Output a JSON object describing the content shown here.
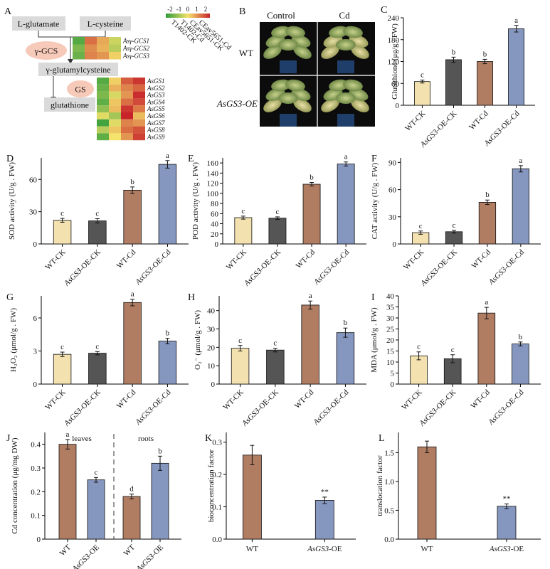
{
  "colors": {
    "wt": "#f3e2b0",
    "oe": "#555555",
    "wtcd": "#b07d63",
    "oecd": "#8596bf",
    "axis": "#000000",
    "hm_low": "#2e9c3a",
    "hm_mid": "#f4e26a",
    "hm_high": "#c8232b"
  },
  "panel_a": {
    "label": "A",
    "l_glutamate": "L-glutamate",
    "l_cysteine": "L-cysteine",
    "gcs": "γ-GCS",
    "gamma_glu_cys": "γ-glutamylcysteine",
    "gs": "GS",
    "glutathione": "glutathione",
    "scale_ticks": [
      "-2",
      "-1",
      "0",
      "1",
      "2"
    ],
    "columns": [
      "T1402-CK",
      "T1402-Cd",
      "CEav5651-CK",
      "CEav5651-Cd"
    ],
    "gcs_genes": [
      "Asγ-GCS1",
      "Asγ-GCS2",
      "Asγ-GCS3"
    ],
    "gs_genes": [
      "AsGS1",
      "AsGS2",
      "AsGS3",
      "AsGS4",
      "AsGS5",
      "AsGS6",
      "AsGS7",
      "AsGS8",
      "AsGS9"
    ],
    "gcs_values": [
      [
        -1.6,
        1.2,
        0.6,
        -0.4
      ],
      [
        -1.2,
        0.9,
        0.5,
        -0.6
      ],
      [
        -1.4,
        1.0,
        0.8,
        0.2
      ]
    ],
    "gs_values": [
      [
        -1.6,
        0.2,
        1.4,
        1.8
      ],
      [
        -1.4,
        0.5,
        1.0,
        1.3
      ],
      [
        -1.2,
        -0.3,
        0.8,
        1.9
      ],
      [
        -1.5,
        0.3,
        1.2,
        1.6
      ],
      [
        -1.0,
        0.4,
        1.8,
        1.1
      ],
      [
        -0.2,
        -0.8,
        2.0,
        0.4
      ],
      [
        -1.8,
        -0.2,
        1.0,
        0.8
      ],
      [
        -0.6,
        0.3,
        1.2,
        1.5
      ],
      [
        -1.5,
        0.0,
        0.8,
        1.7
      ]
    ]
  },
  "panel_b": {
    "label": "B",
    "col_control": "Control",
    "col_cd": "Cd",
    "row_wt": "WT",
    "row_oe": "AsGS3-OE"
  },
  "chart_data": [
    {
      "id": "C",
      "type": "bar",
      "ylabel": "Glutathione (μg/g . FW)",
      "ylim": [
        0,
        240
      ],
      "yticks": [
        0,
        60,
        120,
        180,
        240
      ],
      "categories": [
        "WT-CK",
        "AsGS3-OE-CK",
        "WT-Cd",
        "AsGS3-OE-Cd"
      ],
      "values": [
        65,
        125,
        120,
        210
      ],
      "errors": [
        4,
        7,
        6,
        9
      ],
      "letters": [
        "c",
        "b",
        "b",
        "a"
      ]
    },
    {
      "id": "D",
      "type": "bar",
      "ylabel": "SOD activity (U/g . FW)",
      "ylim": [
        0,
        80
      ],
      "yticks": [
        0,
        30,
        60
      ],
      "categories": [
        "WT-CK",
        "AsGS3-OE-CK",
        "WT-Cd",
        "AsGS3-OE-Cd"
      ],
      "values": [
        22,
        21.5,
        50,
        74
      ],
      "errors": [
        1.8,
        2,
        3,
        3.5
      ],
      "letters": [
        "c",
        "c",
        "b",
        "a"
      ]
    },
    {
      "id": "E",
      "type": "bar",
      "ylabel": "POD activity (U/g . FW)",
      "ylim": [
        0,
        170
      ],
      "yticks": [
        0,
        20,
        40,
        60,
        80,
        100,
        120,
        140,
        160
      ],
      "categories": [
        "WT-CK",
        "AsGS3-OE-CK",
        "WT-Cd",
        "AsGS3-OE-Cd"
      ],
      "values": [
        52,
        51,
        118,
        158
      ],
      "errors": [
        3,
        2.5,
        3.5,
        4
      ],
      "letters": [
        "c",
        "c",
        "b",
        "a"
      ]
    },
    {
      "id": "F",
      "type": "bar",
      "ylabel": "CAT activity (U/g . FW)",
      "ylim": [
        0,
        95
      ],
      "yticks": [
        0,
        30,
        60,
        90
      ],
      "categories": [
        "WT-CK",
        "AsGS3-OE-CK",
        "WT-Cd",
        "AsGS3-OE-Cd"
      ],
      "values": [
        12.5,
        13.5,
        46,
        83
      ],
      "errors": [
        1.8,
        1.5,
        2.5,
        3.5
      ],
      "letters": [
        "c",
        "c",
        "b",
        "a"
      ]
    },
    {
      "id": "G",
      "type": "bar",
      "ylabel": "H₂O₂ (μmol/g . FW)",
      "ylim": [
        0,
        8
      ],
      "yticks": [
        0,
        3,
        6
      ],
      "categories": [
        "WT-CK",
        "AsGS3-OE-CK",
        "WT-Cd",
        "AsGS3-OE-Cd"
      ],
      "values": [
        2.7,
        2.8,
        7.4,
        3.9
      ],
      "errors": [
        0.2,
        0.15,
        0.3,
        0.25
      ],
      "letters": [
        "c",
        "c",
        "a",
        "b"
      ]
    },
    {
      "id": "H",
      "type": "bar",
      "ylabel": "O₂⁻ (μmol/g . FW)",
      "ylim": [
        0,
        48
      ],
      "yticks": [
        0,
        10,
        20,
        30,
        40
      ],
      "categories": [
        "WT-CK",
        "AsGS3-OE-CK",
        "WT-Cd",
        "AsGS3-OE-Cd"
      ],
      "values": [
        19.5,
        18.5,
        43,
        28
      ],
      "errors": [
        1.5,
        1,
        2.2,
        2.5
      ],
      "letters": [
        "c",
        "c",
        "a",
        "b"
      ]
    },
    {
      "id": "I",
      "type": "bar",
      "ylabel": "MDA (μmol/g . FW)",
      "ylim": [
        0,
        40
      ],
      "yticks": [
        0,
        5,
        10,
        15,
        20,
        25,
        30,
        35,
        40
      ],
      "categories": [
        "WT-CK",
        "AsGS3-OE-CK",
        "WT-Cd",
        "AsGS3-OE-Cd"
      ],
      "values": [
        12.8,
        11.5,
        32.2,
        18.2
      ],
      "errors": [
        1.8,
        1.8,
        2.6,
        0.9
      ],
      "letters": [
        "c",
        "c",
        "a",
        "b"
      ]
    },
    {
      "id": "J",
      "type": "bar",
      "ylabel": "Cd concentration (μg/mg DW)",
      "ylim": [
        0,
        0.45
      ],
      "yticks": [
        0,
        0.1,
        0.2,
        0.3,
        0.4
      ],
      "groups": [
        "leaves",
        "roots"
      ],
      "categories": [
        "WT",
        "AsGS3-OE",
        "WT",
        "AsGS3-OE"
      ],
      "values": [
        0.4,
        0.25,
        0.18,
        0.32
      ],
      "errors": [
        0.02,
        0.01,
        0.01,
        0.03
      ],
      "letters": [
        "a",
        "c",
        "d",
        "b"
      ]
    },
    {
      "id": "K",
      "type": "bar",
      "ylabel": "bioconcentration factor",
      "ylim": [
        0,
        0.33
      ],
      "yticks": [
        0.0,
        0.1,
        0.2,
        0.3
      ],
      "categories": [
        "WT",
        "AsGS3-OE"
      ],
      "values": [
        0.26,
        0.12
      ],
      "errors": [
        0.03,
        0.01
      ],
      "letters": [
        "",
        "**"
      ]
    },
    {
      "id": "L",
      "type": "bar",
      "ylabel": "translocation factor",
      "ylim": [
        0,
        1.85
      ],
      "yticks": [
        0.0,
        0.5,
        1.0,
        1.5
      ],
      "categories": [
        "WT",
        "AsGS3-OE"
      ],
      "values": [
        1.6,
        0.57
      ],
      "errors": [
        0.1,
        0.04
      ],
      "letters": [
        "",
        "**"
      ]
    }
  ]
}
